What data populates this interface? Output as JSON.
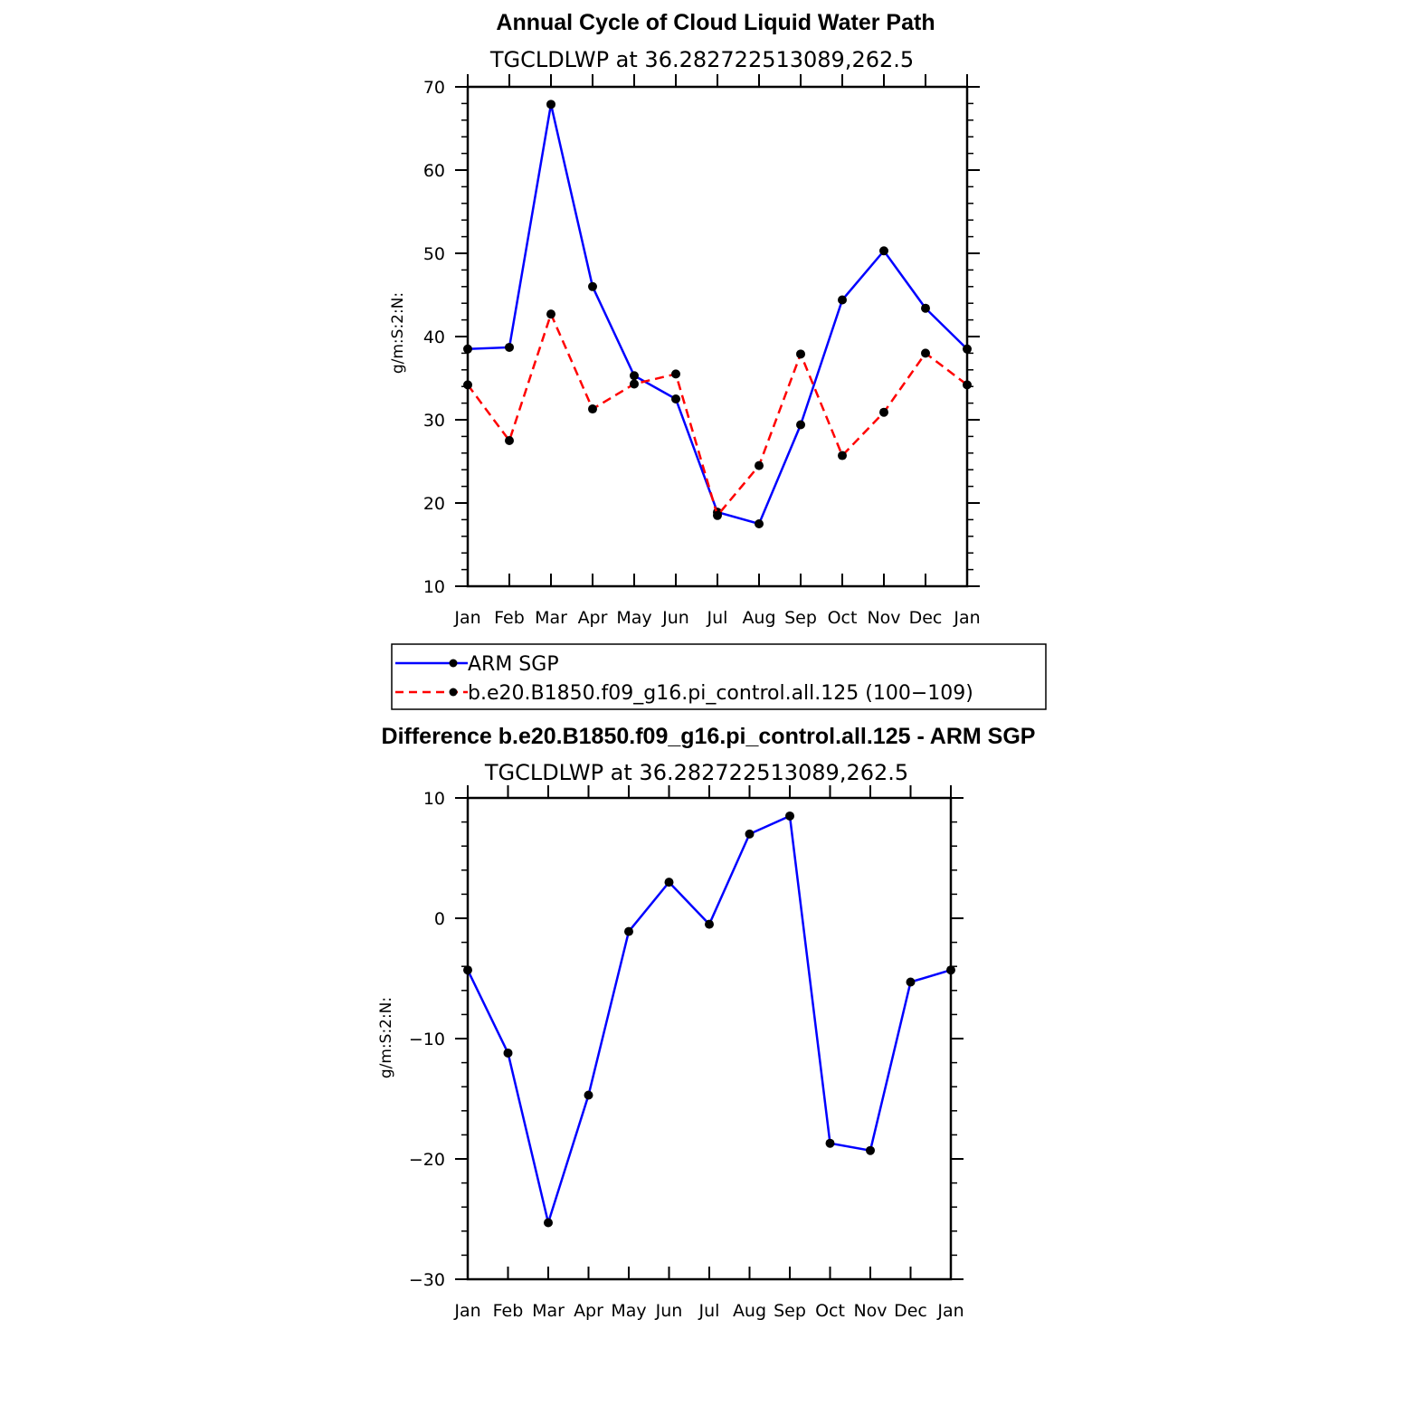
{
  "chart_data": [
    {
      "type": "line",
      "title": "Annual Cycle of Cloud Liquid Water Path",
      "subtitle": "TGCLDLWP at 36.282722513089,262.5",
      "ylabel": "g/m:S:2:N:",
      "xlabel": "",
      "categories": [
        "Jan",
        "Feb",
        "Mar",
        "Apr",
        "May",
        "Jun",
        "Jul",
        "Aug",
        "Sep",
        "Oct",
        "Nov",
        "Dec",
        "Jan"
      ],
      "ylim": [
        10,
        70
      ],
      "yticks": [
        "10",
        "20",
        "30",
        "40",
        "50",
        "60",
        "70"
      ],
      "series": [
        {
          "name": "ARM SGP",
          "color": "#0000ff",
          "dash": "solid",
          "values": [
            38.5,
            38.7,
            67.9,
            46.0,
            35.3,
            32.5,
            18.9,
            17.5,
            29.4,
            44.4,
            50.3,
            43.4,
            38.5
          ]
        },
        {
          "name": "b.e20.B1850.f09_g16.pi_control.all.125 (100−109)",
          "color": "#ff0000",
          "dash": "dashed",
          "values": [
            34.2,
            27.5,
            42.7,
            31.3,
            34.3,
            35.5,
            18.5,
            24.5,
            37.9,
            25.7,
            30.9,
            38.0,
            34.2
          ]
        }
      ],
      "legend": "below"
    },
    {
      "type": "line",
      "title": "Difference b.e20.B1850.f09_g16.pi_control.all.125 - ARM SGP",
      "subtitle": "TGCLDLWP at 36.282722513089,262.5",
      "ylabel": "g/m:S:2:N:",
      "xlabel": "",
      "categories": [
        "Jan",
        "Feb",
        "Mar",
        "Apr",
        "May",
        "Jun",
        "Jul",
        "Aug",
        "Sep",
        "Oct",
        "Nov",
        "Dec",
        "Jan"
      ],
      "ylim": [
        -30,
        10
      ],
      "yticks": [
        "−30",
        "−20",
        "−10",
        "0",
        "10"
      ],
      "series": [
        {
          "color": "#0000ff",
          "dash": "solid",
          "values": [
            -4.3,
            -11.2,
            -25.3,
            -14.7,
            -1.1,
            3.0,
            -0.5,
            7.0,
            8.5,
            -18.7,
            -19.3,
            -5.3,
            -4.3
          ]
        }
      ]
    }
  ]
}
